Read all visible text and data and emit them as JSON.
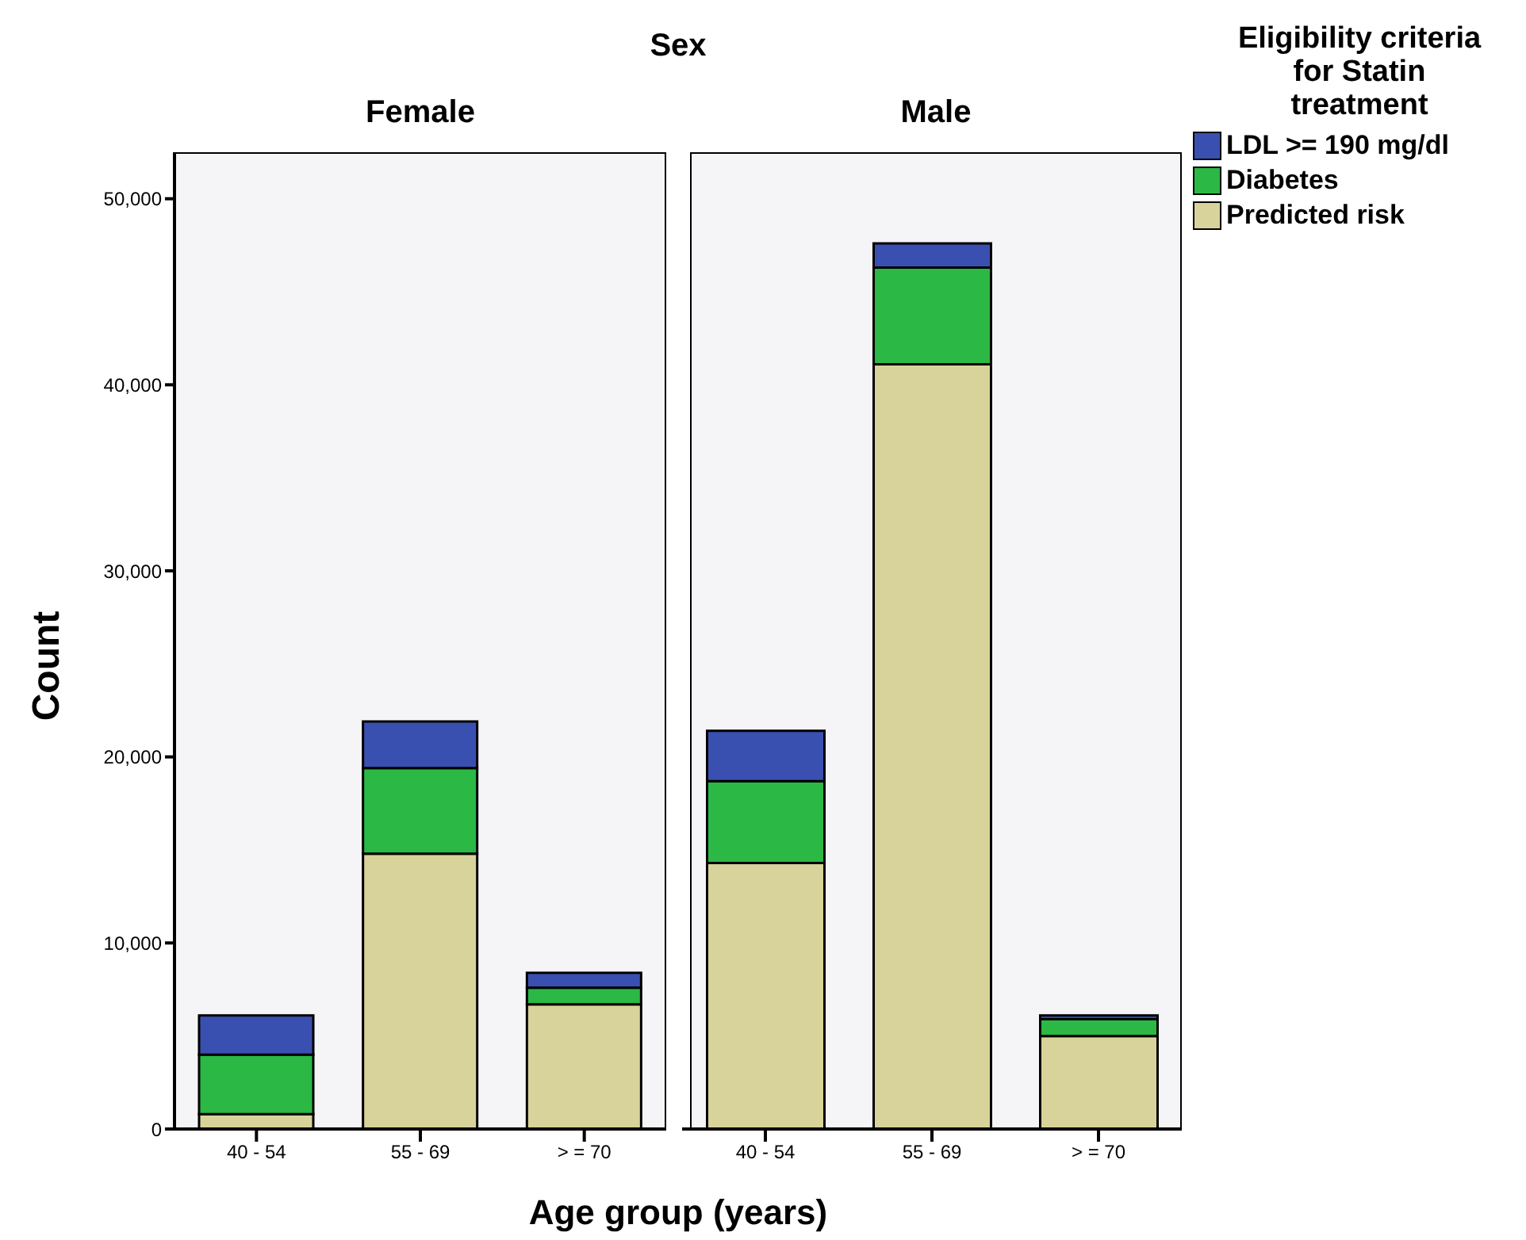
{
  "chart_data": [
    {
      "type": "bar",
      "title": "Female",
      "subtitle": "Sex",
      "xlabel": "Age group (years)",
      "ylabel": "Count",
      "stacked": true,
      "categories": [
        "40 - 54",
        "55 - 69",
        "> = 70"
      ],
      "ylim": [
        0,
        52500
      ],
      "yticks": [
        0,
        {
          "value": 10000,
          "label": "10,000"
        },
        {
          "value": 20000,
          "label": "20,000"
        },
        {
          "value": 30000,
          "label": "30,000"
        },
        {
          "value": 40000,
          "label": "40,000"
        },
        {
          "value": 50000,
          "label": "50,000"
        }
      ],
      "series": [
        {
          "color": "#d8d39a",
          "values": [
            800,
            14800,
            6700
          ]
        },
        {
          "color": "#2bb845",
          "values": [
            3200,
            4600,
            900
          ]
        },
        {
          "color": "#3a50b0",
          "values": [
            2100,
            2500,
            800
          ]
        }
      ]
    },
    {
      "type": "bar",
      "title": "Male",
      "stacked": true,
      "legend": "right",
      "legend_title": "Eligibility criteria for Statin treatment",
      "tick_labels": "x",
      "categories": [
        "40 - 54",
        "55 - 69",
        "> = 70"
      ],
      "ylim": [
        0,
        52500
      ],
      "series": [
        {
          "name": "Predicted risk",
          "color": "#d8d39a",
          "values": [
            14300,
            41100,
            5000
          ]
        },
        {
          "name": "Diabetes",
          "color": "#2bb845",
          "values": [
            4400,
            5200,
            900
          ]
        },
        {
          "name": "LDL >= 190 mg/dl",
          "color": "#3a50b0",
          "values": [
            2700,
            1300,
            200
          ]
        }
      ]
    }
  ]
}
